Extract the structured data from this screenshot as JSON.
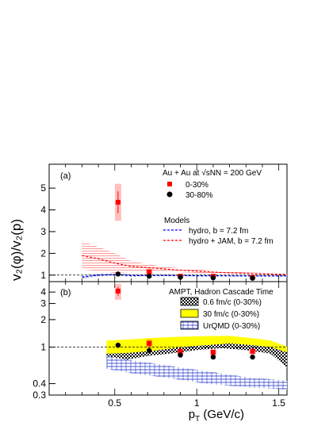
{
  "figure": {
    "ylabel": "v₂(φ)/v₂(p)",
    "xlabel": "p_T (GeV/c)",
    "xlim": [
      0.1,
      1.55
    ],
    "xticks": [
      "0.5",
      "1",
      "1.5"
    ]
  },
  "chart_data": [
    {
      "type": "scatter",
      "panel_label": "(a)",
      "ylim": [
        0.7,
        6.1
      ],
      "yticks": [
        "1",
        "2",
        "3",
        "4",
        "5"
      ],
      "reference_line": 1,
      "title": "Au + Au at √sNN = 200 GeV",
      "legend_header": "Models",
      "series": [
        {
          "name": "0-30%",
          "color": "#ff0000",
          "marker": "square",
          "x": [
            0.52,
            0.71,
            0.9,
            1.1,
            1.34
          ],
          "y": [
            4.35,
            1.15,
            0.95,
            0.95,
            0.9
          ],
          "stat_err": [
            0.5,
            0.1,
            0.06,
            0.06,
            0.06
          ],
          "sys_err": [
            0.85,
            0.15,
            0.08,
            0.08,
            0.08
          ]
        },
        {
          "name": "30-80%",
          "color": "#000000",
          "marker": "circle",
          "x": [
            0.52,
            0.71,
            0.9,
            1.1,
            1.34
          ],
          "y": [
            1.05,
            0.95,
            0.9,
            0.88,
            0.86
          ],
          "stat_err": [
            0.06,
            0.04,
            0.04,
            0.04,
            0.04
          ]
        },
        {
          "name": "hydro, b = 7.2 fm",
          "color": "#0000ff",
          "style": "band-dashed",
          "x": [
            0.3,
            0.4,
            0.5,
            0.6,
            0.7,
            0.85,
            1.0,
            1.15,
            1.3,
            1.45,
            1.55
          ],
          "y": [
            0.92,
            0.99,
            1.03,
            0.97,
            0.98,
            0.98,
            0.97,
            0.97,
            0.96,
            0.96,
            0.96
          ],
          "err": [
            0.07,
            0.06,
            0.06,
            0.06,
            0.05,
            0.05,
            0.05,
            0.04,
            0.04,
            0.04,
            0.04
          ]
        },
        {
          "name": "hydro + JAM, b = 7.2 fm",
          "color": "#ff0000",
          "style": "band-dashed",
          "x": [
            0.3,
            0.4,
            0.5,
            0.6,
            0.7,
            0.85,
            1.0,
            1.15,
            1.3,
            1.45,
            1.55
          ],
          "y": [
            1.9,
            1.75,
            1.55,
            1.4,
            1.35,
            1.25,
            1.18,
            1.12,
            1.08,
            1.05,
            1.03
          ],
          "err": [
            0.65,
            0.55,
            0.45,
            0.25,
            0.15,
            0.1,
            0.08,
            0.06,
            0.05,
            0.04,
            0.04
          ]
        }
      ]
    },
    {
      "type": "scatter",
      "panel_label": "(b)",
      "scale": "log",
      "ylim": [
        0.3,
        5.2
      ],
      "yticks": [
        "0.3",
        "0.4",
        "1",
        "2",
        "3",
        "4"
      ],
      "reference_line": 1,
      "title": "AMPT, Hadron Cascade Time",
      "series": [
        {
          "name": "0-30%",
          "color": "#ff0000",
          "marker": "square",
          "x": [
            0.52,
            0.71,
            0.9,
            1.1,
            1.34
          ],
          "y": [
            4.1,
            1.1,
            0.9,
            0.88,
            0.9
          ],
          "stat_err": [
            0.45,
            0.08,
            0.05,
            0.05,
            0.05
          ],
          "sys_err": [
            0.8,
            0.12,
            0.07,
            0.07,
            0.07
          ]
        },
        {
          "name": "30-80%",
          "color": "#000000",
          "marker": "circle",
          "x": [
            0.52,
            0.71,
            0.9,
            1.1,
            1.34
          ],
          "y": [
            1.05,
            0.92,
            0.82,
            0.78,
            0.78
          ],
          "stat_err": [
            0.06,
            0.04,
            0.04,
            0.04,
            0.04
          ]
        },
        {
          "name": "0.6 fm/c (0-30%)",
          "color": "#000000",
          "style": "checkered-band",
          "x": [
            0.45,
            0.55,
            0.7,
            0.85,
            1.0,
            1.15,
            1.3,
            1.45,
            1.55
          ],
          "low": [
            0.62,
            0.72,
            0.8,
            0.86,
            0.93,
            0.98,
            0.93,
            0.85,
            0.6
          ],
          "high": [
            0.88,
            0.92,
            0.97,
            1.03,
            1.1,
            1.14,
            1.1,
            1.03,
            0.95
          ]
        },
        {
          "name": "30 fm/c (0-30%)",
          "color": "#ffff00",
          "style": "filled-band",
          "x": [
            0.45,
            0.6,
            0.75,
            0.9,
            1.05,
            1.2,
            1.35,
            1.45,
            1.55
          ],
          "low": [
            0.85,
            0.87,
            0.92,
            1.0,
            1.05,
            1.1,
            1.05,
            1.0,
            0.88
          ],
          "high": [
            1.18,
            1.22,
            1.27,
            1.3,
            1.32,
            1.33,
            1.25,
            1.18,
            1.02
          ]
        },
        {
          "name": "UrQMD (0-30%)",
          "color": "#0000ff",
          "style": "hatched-band",
          "x": [
            0.45,
            0.6,
            0.75,
            0.9,
            1.05,
            1.2,
            1.35,
            1.5,
            1.55
          ],
          "low": [
            0.58,
            0.52,
            0.48,
            0.44,
            0.4,
            0.38,
            0.36,
            0.35,
            0.34
          ],
          "high": [
            0.8,
            0.72,
            0.66,
            0.6,
            0.55,
            0.5,
            0.46,
            0.44,
            0.43
          ]
        }
      ]
    }
  ]
}
